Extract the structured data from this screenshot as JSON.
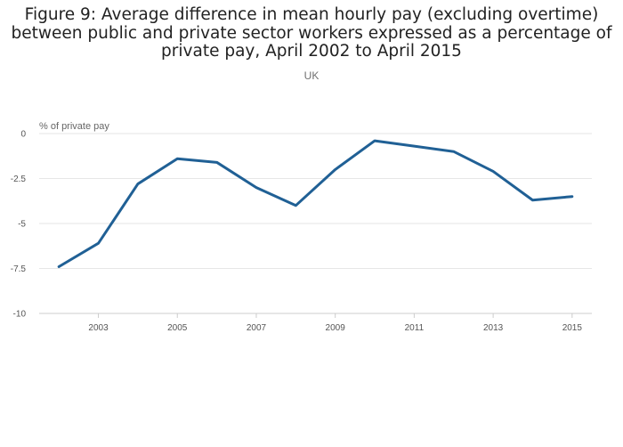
{
  "chart_title_lines": [
    "Figure 9: Average difference in mean hourly pay (excluding overtime)",
    "between public and private sector workers expressed as a percentage of",
    "private pay, April 2002 to April 2015"
  ],
  "chart_subtitle": "UK",
  "colors": {
    "series": "#206095",
    "grid": "#e6e6e6",
    "axis": "#cccccc"
  },
  "chart_data": {
    "type": "line",
    "title": "Figure 9: Average difference in mean hourly pay (excluding overtime) between public and private sector workers expressed as a percentage of private pay, April 2002 to April 2015",
    "subtitle": "UK",
    "xlabel": "",
    "ylabel": "% of private pay",
    "x": [
      2002,
      2003,
      2004,
      2005,
      2006,
      2007,
      2008,
      2009,
      2010,
      2011,
      2012,
      2013,
      2014,
      2015
    ],
    "series": [
      {
        "values": [
          -7.4,
          -6.1,
          -2.8,
          -1.4,
          -1.6,
          -3.0,
          -4.0,
          -2.0,
          -0.4,
          -0.7,
          -1.0,
          -2.1,
          -3.7,
          -3.5
        ]
      }
    ],
    "xlim": [
      2001.5,
      2015.5
    ],
    "ylim": [
      -10,
      0
    ],
    "x_ticks": [
      2003,
      2005,
      2007,
      2009,
      2011,
      2013,
      2015
    ],
    "x_tick_labels": [
      "2003",
      "2005",
      "2007",
      "2009",
      "2011",
      "2013",
      "2015"
    ],
    "y_ticks": [
      0,
      -2.5,
      -5,
      -7.5,
      -10
    ],
    "y_tick_labels": [
      "0",
      "-2.5",
      "-5",
      "-7.5",
      "-10"
    ],
    "grid": true,
    "legend": "none"
  }
}
